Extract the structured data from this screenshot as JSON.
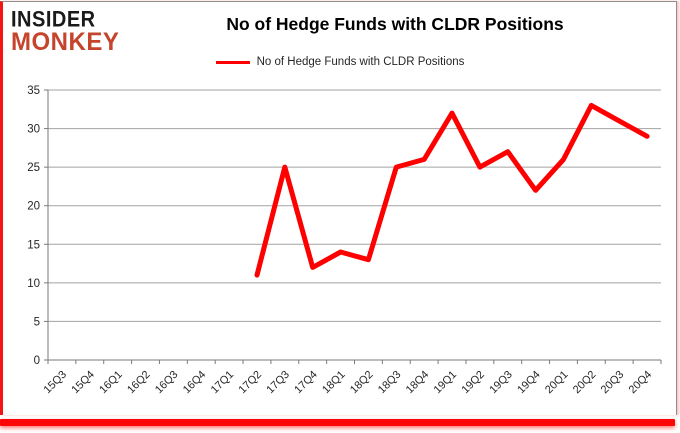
{
  "logo": {
    "line1": "INSIDER",
    "line2": "MONKEY"
  },
  "header": {
    "title": "No of Hedge Funds with CLDR Positions"
  },
  "legend": {
    "label": "No of Hedge Funds with CLDR Positions"
  },
  "colors": {
    "series_red": "#fe0000",
    "logo_black": "#1a1a1a",
    "logo_red": "#c5452c",
    "grid": "#a3a3a3",
    "axis": "#7a7a7a",
    "tick_text": "#262626",
    "frame_red": "#fb0707"
  },
  "chart_data": {
    "type": "line",
    "title": "No of Hedge Funds with CLDR Positions",
    "categories": [
      "15Q3",
      "15Q4",
      "16Q1",
      "16Q2",
      "16Q3",
      "16Q4",
      "17Q1",
      "17Q2",
      "17Q3",
      "17Q4",
      "18Q1",
      "18Q2",
      "18Q3",
      "18Q4",
      "19Q1",
      "19Q2",
      "19Q3",
      "19Q4",
      "20Q1",
      "20Q2",
      "20Q3",
      "20Q4"
    ],
    "series": [
      {
        "name": "No of Hedge Funds with CLDR Positions",
        "color": "#fe0000",
        "values": [
          null,
          null,
          null,
          null,
          null,
          null,
          null,
          11,
          25,
          12,
          14,
          13,
          25,
          26,
          32,
          25,
          27,
          22,
          26,
          33,
          31,
          29
        ]
      }
    ],
    "xlabel": "",
    "ylabel": "",
    "ylim": [
      0,
      35
    ],
    "ytick_step": 5,
    "grid": true,
    "legend_position": "top"
  }
}
